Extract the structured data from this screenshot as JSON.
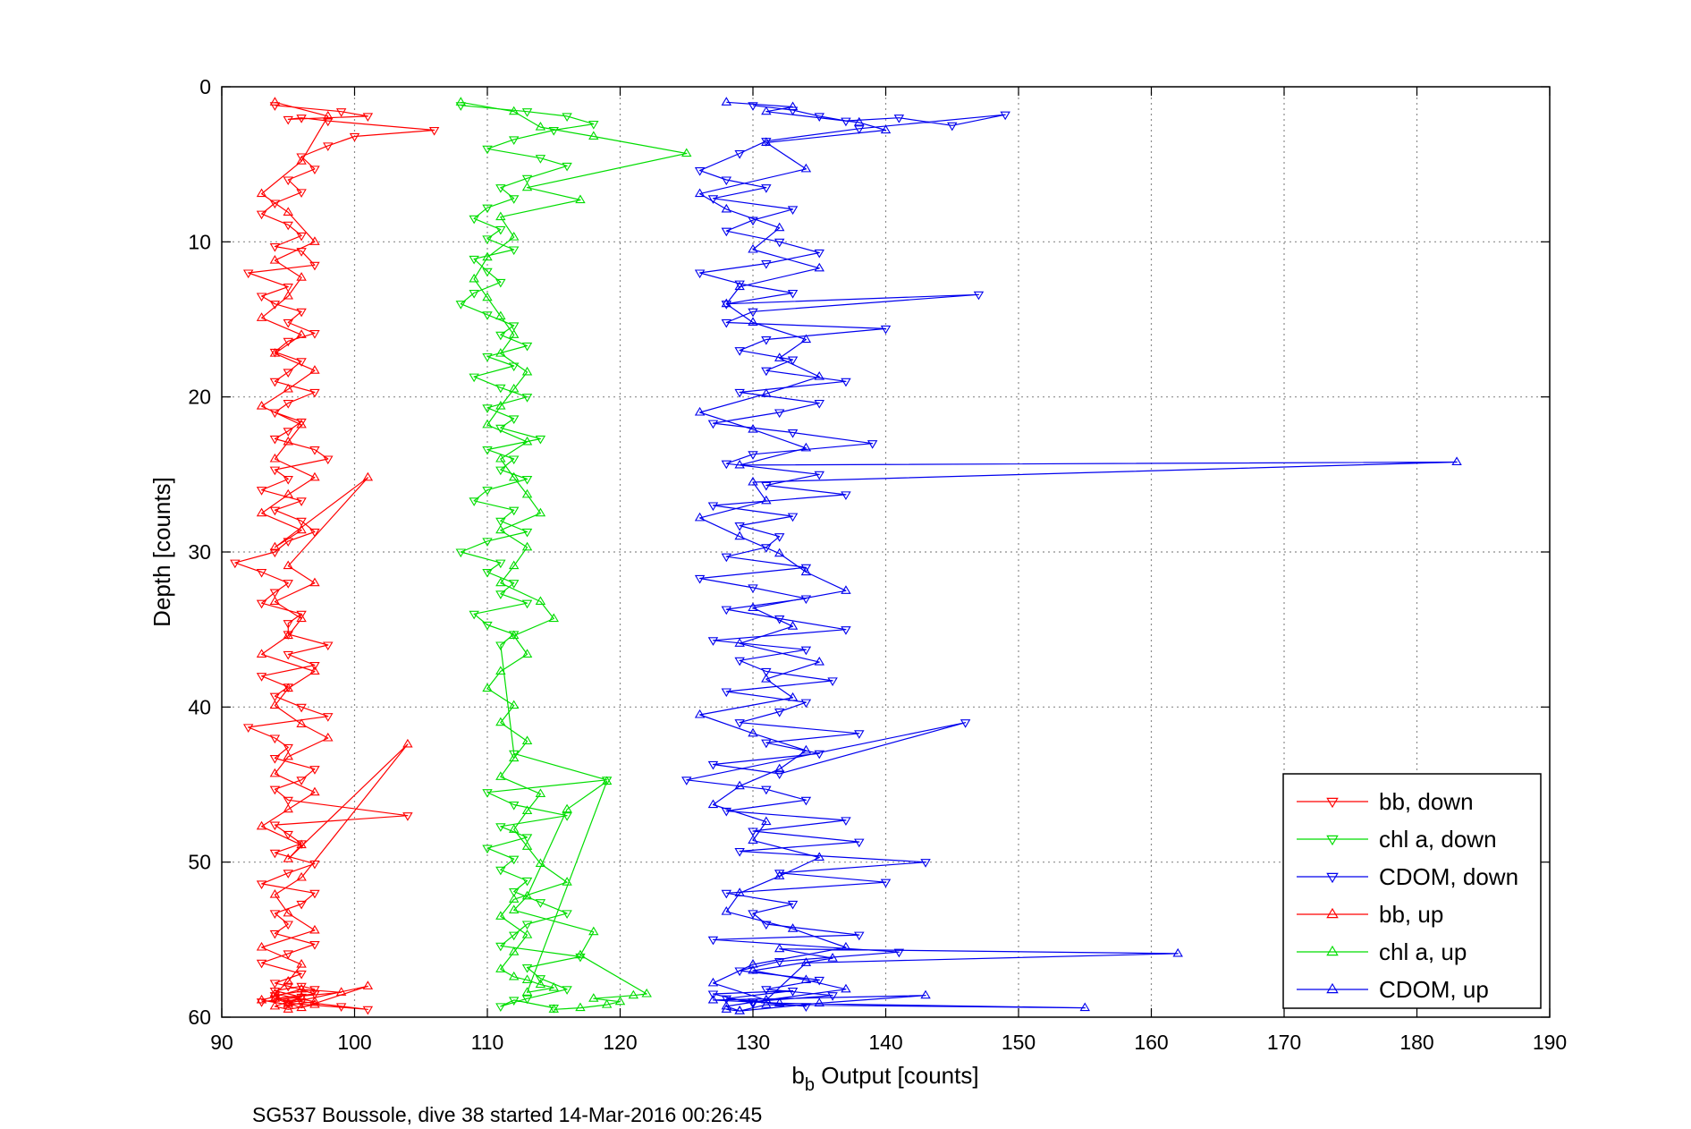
{
  "chart_data": {
    "type": "line",
    "xlabel_main": "b",
    "xlabel_sub": "b",
    "xlabel_rest": " Output [counts]",
    "ylabel": "Depth [counts]",
    "xlim": [
      90,
      190
    ],
    "ylim": [
      0,
      60
    ],
    "y_reversed": true,
    "xticks": [
      "90",
      "100",
      "110",
      "120",
      "130",
      "140",
      "150",
      "160",
      "170",
      "180",
      "190"
    ],
    "yticks": [
      "0",
      "10",
      "20",
      "30",
      "40",
      "50",
      "60"
    ],
    "grid": true,
    "legend_position": "bottom-right",
    "footer": "SG537 Boussole, dive 38 started 14-Mar-2016 00:26:45",
    "series": [
      {
        "name": "bb, down",
        "color": "#ff0000",
        "marker": "triangle-down",
        "x": [
          94,
          99,
          101,
          95,
          96,
          98,
          106,
          100,
          98,
          96,
          97,
          95,
          96,
          94,
          93,
          95,
          96,
          94,
          96,
          97,
          92,
          95,
          93,
          94,
          96,
          95,
          97,
          95,
          94,
          96,
          95,
          94,
          97,
          95,
          94,
          96,
          95,
          94,
          97,
          98,
          94,
          95,
          93,
          96,
          94,
          96,
          97,
          95,
          94,
          91,
          93,
          95,
          94,
          93,
          96,
          95,
          95,
          98,
          95,
          97,
          93,
          95,
          94,
          96,
          98,
          92,
          94,
          95,
          94,
          97,
          96,
          94,
          95,
          104,
          94,
          95,
          96,
          94,
          97,
          95,
          93,
          97,
          96,
          94,
          95,
          94,
          97,
          95,
          93,
          96,
          94,
          95,
          97,
          94,
          96,
          99,
          101,
          95,
          94,
          97,
          96,
          94,
          96,
          93
        ],
        "y": [
          1.2,
          1.6,
          1.9,
          2.1,
          2.0,
          2.2,
          2.8,
          3.2,
          3.8,
          4.5,
          5.3,
          6.0,
          6.8,
          7.5,
          8.2,
          8.9,
          9.6,
          10.3,
          10.6,
          11.5,
          12.0,
          12.9,
          13.5,
          14.0,
          14.5,
          15.2,
          15.9,
          16.4,
          17.1,
          17.7,
          18.4,
          19.0,
          19.7,
          20.4,
          21.0,
          21.6,
          22.2,
          22.7,
          23.4,
          24.0,
          24.7,
          25.3,
          26.0,
          26.7,
          27.3,
          28.0,
          28.7,
          29.3,
          30.0,
          30.7,
          31.3,
          32.0,
          32.6,
          33.3,
          34.0,
          34.6,
          35.3,
          36.0,
          36.6,
          37.3,
          38.0,
          38.7,
          39.3,
          40.0,
          40.6,
          41.3,
          42.0,
          42.6,
          43.3,
          44.0,
          44.7,
          45.3,
          46.0,
          47.0,
          47.6,
          48.2,
          48.8,
          49.4,
          50.1,
          50.7,
          51.4,
          52.0,
          52.7,
          53.3,
          54.0,
          54.6,
          55.3,
          55.9,
          56.5,
          57.2,
          57.8,
          58.0,
          58.5,
          58.8,
          59.0,
          59.3,
          59.5,
          59.1,
          58.6,
          58.2,
          58.0,
          58.3,
          58.7,
          59.0
        ]
      },
      {
        "name": "chl a, down",
        "color": "#00dd00",
        "marker": "triangle-down",
        "x": [
          108,
          113,
          116,
          118,
          115,
          112,
          110,
          114,
          116,
          113,
          111,
          112,
          110,
          109,
          111,
          110,
          112,
          109,
          110,
          111,
          109,
          108,
          110,
          112,
          111,
          113,
          110,
          112,
          109,
          111,
          113,
          110,
          112,
          111,
          114,
          110,
          112,
          111,
          113,
          110,
          109,
          112,
          111,
          113,
          110,
          108,
          111,
          110,
          112,
          111,
          113,
          109,
          110,
          112,
          111,
          112,
          119,
          110,
          112,
          116,
          111,
          113,
          110,
          112,
          111,
          113,
          112,
          114,
          116,
          113,
          112,
          111,
          117,
          113,
          114,
          116,
          113,
          111,
          112,
          115
        ],
        "y": [
          1.2,
          1.6,
          1.9,
          2.4,
          2.8,
          3.4,
          4.0,
          4.6,
          5.1,
          5.9,
          6.5,
          7.2,
          7.8,
          8.5,
          9.2,
          9.8,
          10.5,
          11.1,
          11.9,
          12.6,
          13.3,
          14.0,
          14.7,
          15.4,
          16.0,
          16.7,
          17.4,
          18.0,
          18.7,
          19.4,
          20.0,
          20.7,
          21.4,
          22.0,
          22.7,
          23.4,
          24.0,
          24.7,
          25.3,
          26.0,
          26.7,
          27.3,
          28.0,
          28.7,
          29.3,
          30.0,
          30.7,
          31.3,
          32.0,
          32.7,
          33.3,
          34.0,
          34.7,
          35.3,
          36.0,
          43.0,
          44.7,
          45.5,
          46.3,
          47.0,
          47.7,
          48.4,
          49.1,
          49.8,
          50.5,
          51.2,
          51.9,
          52.6,
          53.3,
          54.0,
          54.7,
          55.4,
          56.1,
          56.8,
          57.5,
          58.2,
          58.8,
          59.3,
          58.9,
          59.4
        ]
      },
      {
        "name": "CDOM, down",
        "color": "#0000ee",
        "marker": "triangle-down",
        "x": [
          130,
          133,
          135,
          137,
          141,
          145,
          149,
          138,
          131,
          129,
          126,
          128,
          131,
          127,
          133,
          130,
          128,
          132,
          135,
          131,
          126,
          129,
          133,
          128,
          147,
          130,
          128,
          140,
          131,
          129,
          133,
          131,
          137,
          129,
          135,
          132,
          127,
          133,
          139,
          130,
          128,
          135,
          131,
          137,
          127,
          133,
          129,
          132,
          131,
          128,
          134,
          126,
          130,
          134,
          128,
          132,
          137,
          127,
          134,
          129,
          131,
          136,
          128,
          134,
          132,
          129,
          138,
          131,
          135,
          127,
          132,
          146,
          125,
          131,
          134,
          128,
          137,
          130,
          138,
          129,
          143,
          132,
          140,
          128,
          133,
          130,
          131,
          138,
          127,
          141,
          132,
          129,
          135,
          131,
          136,
          130,
          134,
          128,
          133,
          127,
          130
        ],
        "y": [
          1.2,
          1.5,
          1.9,
          2.2,
          2.0,
          2.5,
          1.8,
          2.7,
          3.5,
          4.3,
          5.4,
          6.0,
          6.5,
          7.2,
          7.9,
          8.6,
          9.3,
          10.0,
          10.7,
          11.4,
          12.0,
          12.7,
          13.3,
          14.0,
          13.4,
          14.5,
          15.2,
          15.6,
          16.3,
          17.0,
          17.6,
          18.3,
          19.0,
          19.7,
          20.4,
          21.0,
          21.7,
          22.3,
          23.0,
          23.7,
          24.3,
          25.0,
          25.7,
          26.3,
          27.0,
          27.7,
          28.3,
          29.0,
          29.7,
          30.3,
          31.0,
          31.7,
          32.3,
          33.0,
          33.7,
          34.3,
          35.0,
          35.7,
          36.3,
          37.0,
          37.7,
          38.3,
          39.0,
          39.7,
          40.3,
          41.0,
          41.7,
          42.3,
          43.0,
          43.7,
          44.3,
          41.0,
          44.7,
          45.3,
          46.0,
          46.7,
          47.3,
          48.0,
          48.7,
          49.3,
          50.0,
          50.7,
          51.3,
          52.0,
          52.7,
          53.3,
          54.0,
          54.7,
          55.0,
          55.8,
          56.4,
          57.0,
          57.6,
          58.2,
          58.6,
          59.0,
          59.3,
          58.8,
          58.3,
          58.5,
          59.1
        ]
      },
      {
        "name": "bb, up",
        "color": "#ff0000",
        "marker": "triangle-up",
        "x": [
          94,
          98,
          96,
          93,
          95,
          97,
          94,
          96,
          95,
          93,
          96,
          94,
          97,
          95,
          93,
          96,
          95,
          94,
          97,
          95,
          93,
          96,
          94,
          101,
          95,
          97,
          94,
          96,
          95,
          93,
          97,
          95,
          94,
          96,
          98,
          95,
          94,
          97,
          95,
          93,
          96,
          95,
          104,
          96,
          94,
          95,
          97,
          93,
          96,
          95,
          94,
          97,
          95,
          93,
          96,
          99,
          94,
          96,
          101,
          95,
          96,
          94,
          95,
          97
        ],
        "y": [
          1.0,
          1.9,
          4.8,
          6.9,
          8.1,
          10.0,
          11.2,
          12.3,
          13.5,
          14.9,
          16.0,
          17.2,
          18.3,
          19.5,
          20.6,
          21.8,
          22.9,
          24.0,
          25.2,
          26.3,
          27.5,
          28.6,
          29.7,
          25.2,
          30.9,
          32.0,
          33.2,
          34.3,
          35.4,
          36.6,
          37.7,
          38.8,
          39.9,
          41.1,
          42.0,
          43.2,
          44.3,
          45.5,
          46.6,
          47.7,
          48.9,
          49.8,
          42.4,
          51.0,
          52.1,
          53.3,
          54.4,
          55.5,
          56.6,
          57.7,
          58.5,
          59.0,
          59.2,
          58.9,
          58.2,
          58.4,
          58.8,
          59.4,
          58.0,
          59.1,
          58.7,
          59.3,
          59.5,
          59.2
        ]
      },
      {
        "name": "chl a, up",
        "color": "#00dd00",
        "marker": "triangle-up",
        "x": [
          108,
          112,
          114,
          118,
          125,
          113,
          117,
          111,
          112,
          110,
          109,
          110,
          111,
          112,
          111,
          113,
          112,
          111,
          110,
          113,
          111,
          112,
          113,
          114,
          111,
          113,
          112,
          111,
          114,
          115,
          112,
          113,
          111,
          110,
          112,
          111,
          113,
          112,
          111,
          114,
          113,
          112,
          113,
          114,
          116,
          112,
          111,
          113,
          112,
          111,
          112,
          113,
          114,
          115,
          113,
          119,
          116,
          113,
          112,
          118,
          117,
          122,
          121,
          118,
          120,
          119,
          117,
          115
        ],
        "y": [
          1.0,
          1.6,
          2.6,
          3.2,
          4.3,
          6.5,
          7.3,
          8.4,
          9.7,
          11.0,
          12.4,
          13.6,
          14.8,
          16.0,
          17.2,
          18.4,
          19.5,
          20.6,
          21.8,
          22.9,
          24.0,
          25.2,
          26.3,
          27.5,
          28.6,
          29.7,
          30.9,
          32.0,
          33.2,
          34.3,
          35.4,
          36.6,
          37.7,
          38.8,
          39.9,
          41.0,
          42.2,
          43.3,
          44.5,
          45.6,
          46.7,
          47.9,
          49.0,
          50.1,
          51.3,
          52.4,
          53.5,
          54.7,
          55.8,
          56.9,
          57.4,
          57.6,
          57.9,
          58.1,
          58.4,
          44.8,
          46.6,
          52.2,
          53.1,
          54.5,
          56.0,
          58.5,
          58.6,
          58.8,
          59.0,
          59.2,
          59.4,
          59.5
        ]
      },
      {
        "name": "CDOM, up",
        "color": "#0000ee",
        "marker": "triangle-up",
        "x": [
          128,
          133,
          131,
          138,
          140,
          131,
          134,
          126,
          128,
          132,
          130,
          135,
          129,
          128,
          130,
          134,
          132,
          135,
          131,
          126,
          130,
          134,
          129,
          183,
          130,
          131,
          126,
          129,
          132,
          134,
          137,
          130,
          133,
          129,
          135,
          131,
          133,
          126,
          130,
          134,
          132,
          129,
          127,
          131,
          130,
          135,
          132,
          129,
          128,
          133,
          137,
          130,
          127,
          131,
          134,
          162,
          132,
          136,
          130,
          134,
          137,
          131,
          128,
          129,
          135,
          143,
          127,
          132,
          155,
          131,
          129,
          128
        ],
        "y": [
          1.0,
          1.3,
          1.6,
          2.3,
          2.8,
          3.6,
          5.3,
          6.9,
          7.9,
          9.1,
          10.5,
          11.7,
          12.9,
          14.0,
          15.2,
          16.3,
          17.5,
          18.7,
          19.8,
          21.0,
          22.1,
          23.3,
          24.4,
          24.2,
          25.5,
          26.7,
          27.8,
          29.0,
          30.1,
          31.3,
          32.5,
          33.6,
          34.8,
          35.9,
          37.1,
          38.2,
          39.4,
          40.5,
          41.7,
          42.8,
          44.0,
          45.1,
          46.3,
          47.4,
          48.6,
          49.7,
          50.9,
          52.0,
          53.2,
          54.3,
          55.5,
          56.6,
          57.8,
          58.9,
          56.5,
          55.9,
          55.6,
          56.2,
          57.0,
          57.6,
          58.2,
          58.9,
          59.3,
          59.6,
          59.1,
          58.6,
          58.9,
          59.1,
          59.4,
          59.2,
          59.6,
          59.5
        ]
      }
    ]
  }
}
